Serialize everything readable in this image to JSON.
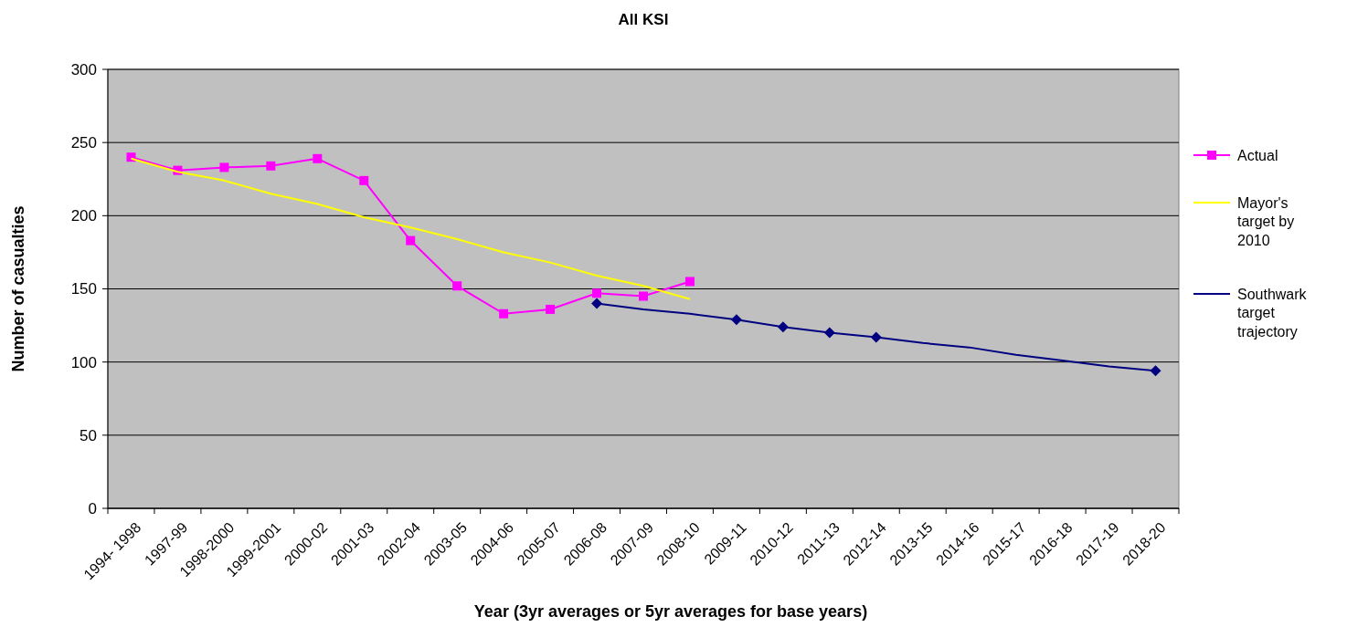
{
  "chart_data": {
    "type": "line",
    "title": "All KSI",
    "xlabel": "Year (3yr averages or 5yr averages for base years)",
    "ylabel": "Number of casualties",
    "categories": [
      "1994- 1998",
      "1997-99",
      "1998-2000",
      "1999-2001",
      "2000-02",
      "2001-03",
      "2002-04",
      "2003-05",
      "2004-06",
      "2005-07",
      "2006-08",
      "2007-09",
      "2008-10",
      "2009-11",
      "2010-12",
      "2011-13",
      "2012-14",
      "2013-15",
      "2014-16",
      "2015-17",
      "2016-18",
      "2017-19",
      "2018-20"
    ],
    "series": [
      {
        "name": "Actual",
        "color": "#ff00ff",
        "marker": "square",
        "values": [
          240,
          231,
          233,
          234,
          239,
          224,
          183,
          152,
          133,
          136,
          147,
          145,
          155,
          null,
          null,
          null,
          null,
          null,
          null,
          null,
          null,
          null,
          null
        ]
      },
      {
        "name": "Mayor's target by 2010",
        "color": "#ffff00",
        "marker": "none",
        "values": [
          239,
          230,
          224,
          215,
          208,
          199,
          192,
          184,
          175,
          168,
          159,
          152,
          143,
          null,
          null,
          null,
          null,
          null,
          null,
          null,
          null,
          null,
          null
        ]
      },
      {
        "name": "Southwark target trajectory",
        "color": "#000080",
        "marker": "none",
        "values": [
          null,
          null,
          null,
          null,
          null,
          null,
          null,
          null,
          null,
          null,
          140,
          136,
          133,
          129,
          124,
          120,
          117,
          113,
          110,
          105,
          101,
          97,
          94
        ]
      },
      {
        "type": "scatter",
        "color": "#000080",
        "marker": "diamond",
        "values": [
          null,
          null,
          null,
          null,
          null,
          null,
          null,
          null,
          null,
          null,
          140,
          null,
          null,
          129,
          124,
          120,
          117,
          null,
          null,
          null,
          null,
          null,
          94
        ]
      }
    ],
    "ylim": [
      0,
      300
    ],
    "yticks": [
      0,
      50,
      100,
      150,
      200,
      250,
      300
    ],
    "grid": "y",
    "legend": "right"
  }
}
